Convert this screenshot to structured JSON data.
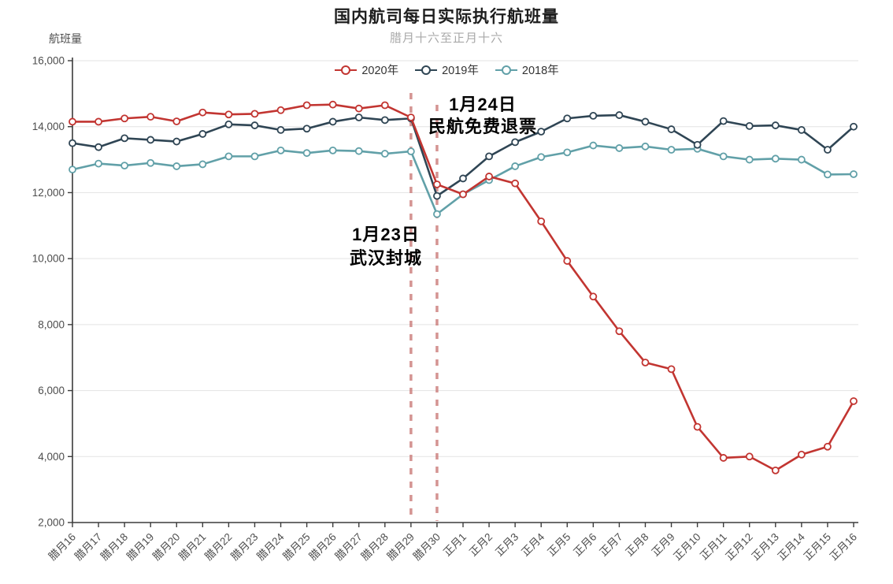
{
  "title": "国内航司每日实际执行航班量",
  "subtitle": "腊月十六至正月十六",
  "y_axis_name": "航班量",
  "annotations": [
    {
      "line1": "1月23日",
      "line2": "武汉封城"
    },
    {
      "line1": "1月24日",
      "line2": "民航免费退票"
    }
  ],
  "colors": {
    "series_2020": "#c23531",
    "series_2019": "#2f4554",
    "series_2018": "#61a0a8",
    "markline": "#ca7a78",
    "grid": "#e3e3e3",
    "axis": "#3b3b3b"
  },
  "chart_data": {
    "type": "line",
    "title": "国内航司每日实际执行航班量",
    "subtitle": "腊月十六至正月十六",
    "ylabel": "航班量",
    "ylim": [
      2000,
      16000
    ],
    "ytick_step": 2000,
    "grid": true,
    "legend_position": "top-center",
    "marker": "hollow-circle",
    "categories": [
      "腊月16",
      "腊月17",
      "腊月18",
      "腊月19",
      "腊月20",
      "腊月21",
      "腊月22",
      "腊月23",
      "腊月24",
      "腊月25",
      "腊月26",
      "腊月27",
      "腊月28",
      "腊月29",
      "腊月30",
      "正月1",
      "正月2",
      "正月3",
      "正月4",
      "正月5",
      "正月6",
      "正月7",
      "正月8",
      "正月9",
      "正月10",
      "正月11",
      "正月12",
      "正月13",
      "正月14",
      "正月15",
      "正月16"
    ],
    "series": [
      {
        "name": "2020年",
        "color": "#c23531",
        "values": [
          14150,
          14150,
          14250,
          14300,
          14160,
          14430,
          14370,
          14390,
          14500,
          14650,
          14670,
          14550,
          14650,
          14280,
          12250,
          11950,
          12490,
          12280,
          11130,
          9930,
          8850,
          7800,
          6850,
          6650,
          4900,
          3960,
          4000,
          3580,
          4060,
          4300,
          5680
        ]
      },
      {
        "name": "2019年",
        "color": "#2f4554",
        "values": [
          13500,
          13380,
          13650,
          13600,
          13550,
          13780,
          14070,
          14040,
          13900,
          13940,
          14150,
          14280,
          14200,
          14250,
          11900,
          12430,
          13100,
          13530,
          13850,
          14250,
          14330,
          14350,
          14150,
          13920,
          13450,
          14170,
          14020,
          14040,
          13900,
          13300,
          14000
        ]
      },
      {
        "name": "2018年",
        "color": "#61a0a8",
        "values": [
          12700,
          12880,
          12820,
          12900,
          12800,
          12860,
          13100,
          13100,
          13280,
          13200,
          13280,
          13260,
          13180,
          13250,
          11350,
          11950,
          12380,
          12800,
          13080,
          13220,
          13430,
          13350,
          13400,
          13300,
          13330,
          13100,
          13000,
          13030,
          13000,
          12550,
          12560
        ]
      }
    ],
    "marklines": [
      {
        "category": "腊月29",
        "label": "1月23日 武汉封城",
        "color": "#ca7a78",
        "style": "dashed"
      },
      {
        "category": "腊月30",
        "label": "1月24日 民航免费退票",
        "color": "#ca7a78",
        "style": "dashed"
      }
    ]
  }
}
